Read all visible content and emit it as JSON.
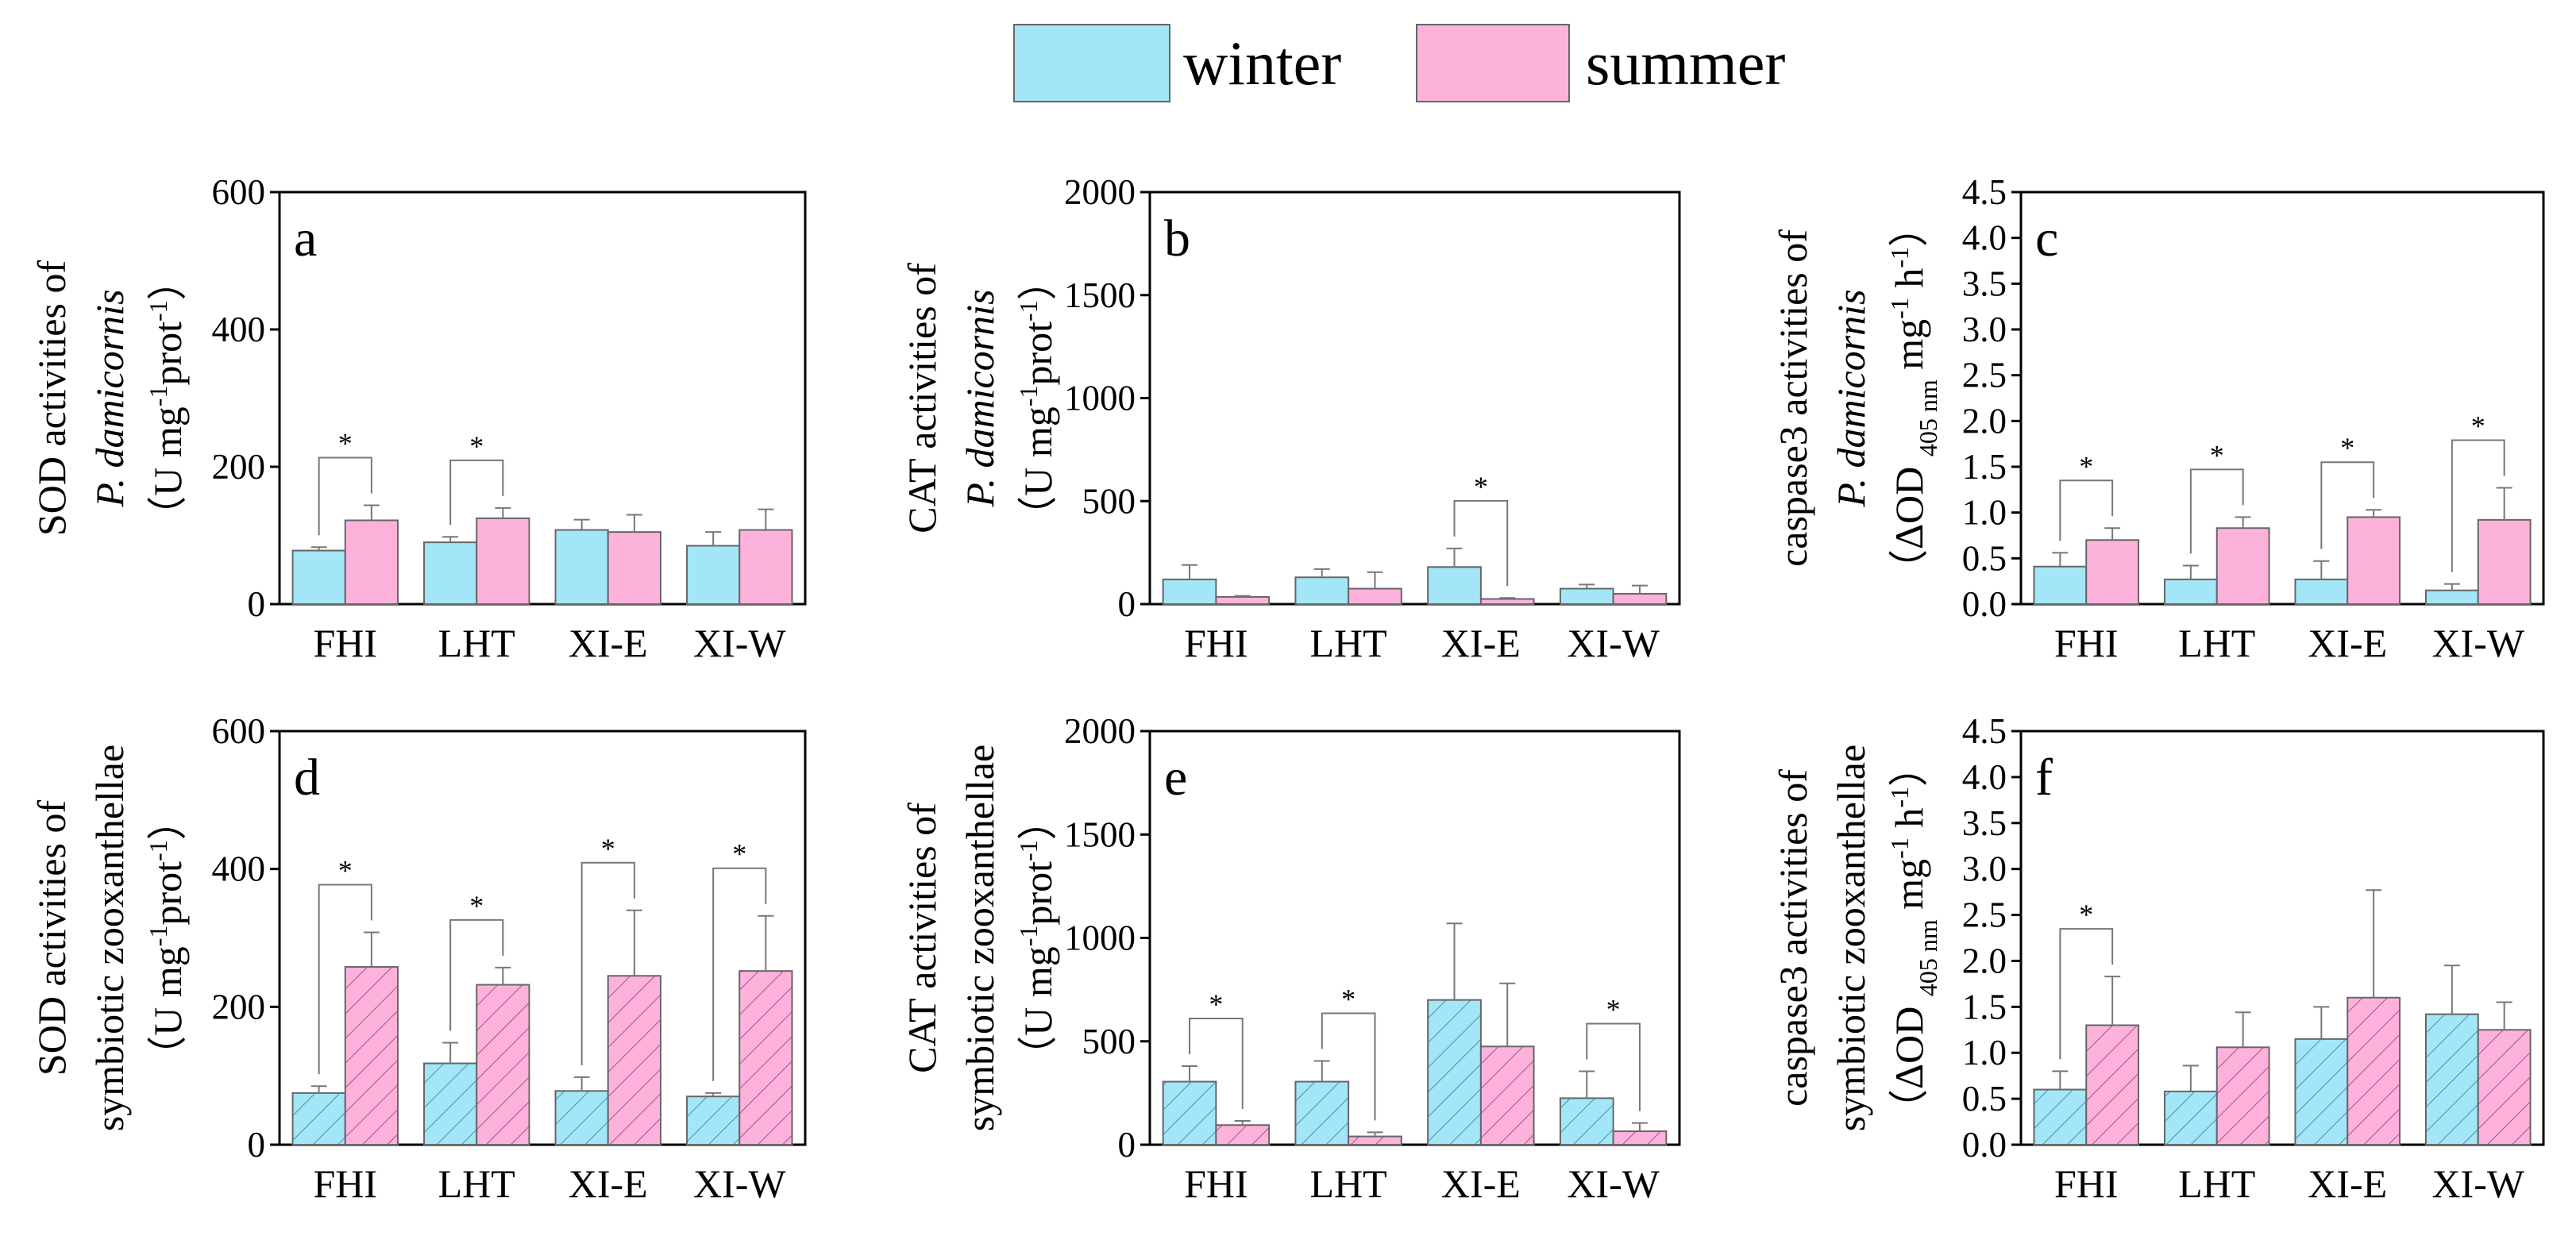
{
  "colors": {
    "winter": "#A3E6F8",
    "summer": "#FDB2DC",
    "outline": "#666666"
  },
  "chart_data": {
    "type": "bar",
    "legend": {
      "placement": "top-center",
      "entries": [
        "winter",
        "summer"
      ]
    },
    "categories": [
      "FHI",
      "LHT",
      "XI-E",
      "XI-W"
    ],
    "panels": [
      {
        "letter": "a",
        "ylim": [
          0,
          600
        ],
        "yticks": [
          0,
          200,
          400,
          600
        ],
        "hatched": false,
        "ylabel": [
          [
            {
              "t": "SOD activities of"
            }
          ],
          [
            {
              "t": "P. damicornis",
              "it": true
            }
          ],
          [
            {
              "t": "（U mg"
            },
            {
              "t": "-1",
              "sup": true
            },
            {
              "t": "prot"
            },
            {
              "t": "-1",
              "sup": true
            },
            {
              "t": "）"
            }
          ]
        ],
        "series": [
          {
            "name": "winter",
            "values": [
              78,
              90,
              108,
              85
            ],
            "errors": [
              5,
              8,
              15,
              20
            ]
          },
          {
            "name": "summer",
            "values": [
              122,
              125,
              105,
              108
            ],
            "errors": [
              22,
              15,
              25,
              30
            ]
          }
        ],
        "significance": [
          true,
          true,
          false,
          false
        ]
      },
      {
        "letter": "b",
        "ylim": [
          0,
          2000
        ],
        "yticks": [
          0,
          500,
          1000,
          1500,
          2000
        ],
        "hatched": false,
        "ylabel": [
          [
            {
              "t": "CAT activities of"
            }
          ],
          [
            {
              "t": "P. damicornis",
              "it": true
            }
          ],
          [
            {
              "t": "（U mg"
            },
            {
              "t": "-1",
              "sup": true
            },
            {
              "t": "prot"
            },
            {
              "t": "-1",
              "sup": true
            },
            {
              "t": "）"
            }
          ]
        ],
        "series": [
          {
            "name": "winter",
            "values": [
              120,
              130,
              180,
              75
            ],
            "errors": [
              70,
              40,
              90,
              20
            ]
          },
          {
            "name": "summer",
            "values": [
              35,
              75,
              25,
              50
            ],
            "errors": [
              5,
              80,
              5,
              40
            ]
          }
        ],
        "significance": [
          false,
          false,
          true,
          false
        ]
      },
      {
        "letter": "c",
        "ylim": [
          0,
          4.5
        ],
        "yticks": [
          0,
          0.5,
          1.0,
          1.5,
          2.0,
          2.5,
          3.0,
          3.5,
          4.0,
          4.5
        ],
        "hatched": false,
        "ylabel": [
          [
            {
              "t": "caspase3 activities of"
            }
          ],
          [
            {
              "t": "P. damicornis",
              "it": true
            }
          ],
          [
            {
              "t": "（ΔOD "
            },
            {
              "t": "405 nm",
              "sub": true
            },
            {
              "t": " mg"
            },
            {
              "t": "-1",
              "sup": true
            },
            {
              "t": " h"
            },
            {
              "t": "-1",
              "sup": true
            },
            {
              "t": "）"
            }
          ]
        ],
        "series": [
          {
            "name": "winter",
            "values": [
              0.41,
              0.27,
              0.27,
              0.15
            ],
            "errors": [
              0.15,
              0.15,
              0.2,
              0.07
            ]
          },
          {
            "name": "summer",
            "values": [
              0.7,
              0.83,
              0.95,
              0.92
            ],
            "errors": [
              0.13,
              0.12,
              0.08,
              0.35
            ]
          }
        ],
        "significance": [
          true,
          true,
          true,
          true
        ]
      },
      {
        "letter": "d",
        "ylim": [
          0,
          600
        ],
        "yticks": [
          0,
          200,
          400,
          600
        ],
        "hatched": true,
        "ylabel": [
          [
            {
              "t": "SOD activities of"
            }
          ],
          [
            {
              "t": "symbiotic zooxanthellae"
            }
          ],
          [
            {
              "t": "（U mg"
            },
            {
              "t": "-1",
              "sup": true
            },
            {
              "t": "prot"
            },
            {
              "t": "-1",
              "sup": true
            },
            {
              "t": "）"
            }
          ]
        ],
        "series": [
          {
            "name": "winter",
            "values": [
              75,
              118,
              78,
              70
            ],
            "errors": [
              10,
              30,
              20,
              5
            ]
          },
          {
            "name": "summer",
            "values": [
              258,
              232,
              245,
              252
            ],
            "errors": [
              50,
              25,
              95,
              80
            ]
          }
        ],
        "significance": [
          true,
          true,
          true,
          true
        ]
      },
      {
        "letter": "e",
        "ylim": [
          0,
          2000
        ],
        "yticks": [
          0,
          500,
          1000,
          1500,
          2000
        ],
        "hatched": true,
        "ylabel": [
          [
            {
              "t": "CAT activities of"
            }
          ],
          [
            {
              "t": "symbiotic zooxanthellae"
            }
          ],
          [
            {
              "t": "（U mg"
            },
            {
              "t": "-1",
              "sup": true
            },
            {
              "t": "prot"
            },
            {
              "t": "-1",
              "sup": true
            },
            {
              "t": "）"
            }
          ]
        ],
        "series": [
          {
            "name": "winter",
            "values": [
              305,
              305,
              700,
              225
            ],
            "errors": [
              75,
              100,
              370,
              130
            ]
          },
          {
            "name": "summer",
            "values": [
              95,
              40,
              475,
              65
            ],
            "errors": [
              20,
              20,
              305,
              40
            ]
          }
        ],
        "significance": [
          true,
          true,
          false,
          true
        ]
      },
      {
        "letter": "f",
        "ylim": [
          0,
          4.5
        ],
        "yticks": [
          0,
          0.5,
          1.0,
          1.5,
          2.0,
          2.5,
          3.0,
          3.5,
          4.0,
          4.5
        ],
        "hatched": true,
        "ylabel": [
          [
            {
              "t": "caspase3 activities of"
            }
          ],
          [
            {
              "t": "symbiotic zooxanthellae"
            }
          ],
          [
            {
              "t": "（ΔOD "
            },
            {
              "t": "405 nm",
              "sub": true
            },
            {
              "t": " mg"
            },
            {
              "t": "-1",
              "sup": true
            },
            {
              "t": " h"
            },
            {
              "t": "-1",
              "sup": true
            },
            {
              "t": "）"
            }
          ]
        ],
        "series": [
          {
            "name": "winter",
            "values": [
              0.6,
              0.58,
              1.15,
              1.42
            ],
            "errors": [
              0.2,
              0.28,
              0.35,
              0.53
            ]
          },
          {
            "name": "summer",
            "values": [
              1.3,
              1.06,
              1.6,
              1.25
            ],
            "errors": [
              0.53,
              0.38,
              1.17,
              0.3
            ]
          }
        ],
        "significance": [
          true,
          false,
          false,
          false
        ]
      }
    ],
    "significance_mark": "*"
  }
}
